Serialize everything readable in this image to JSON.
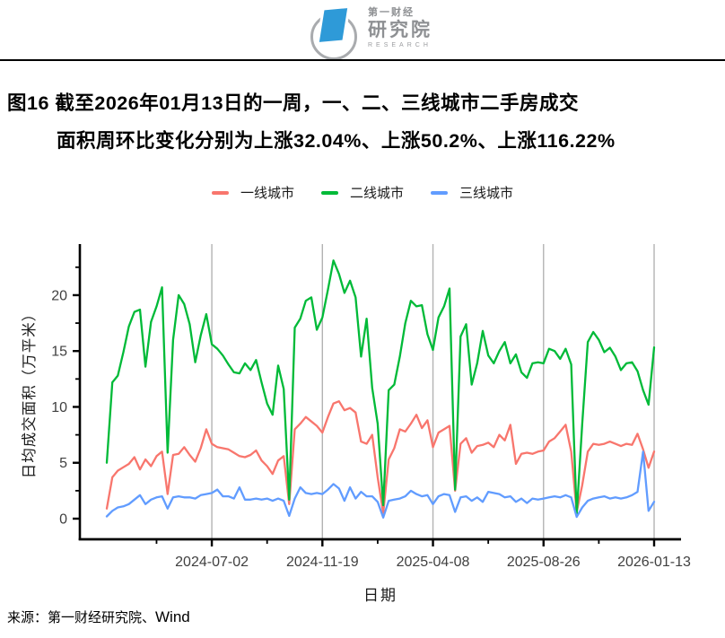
{
  "logo": {
    "brand_small": "第一财经",
    "brand_large": "研究院",
    "brand_en": "RESEARCH",
    "brand_color": "#2e9ad8"
  },
  "title": {
    "line1": "图16  截至2026年01月13日的一周，一、二、三线城市二手房成交",
    "line2": "面积周环比变化分别为上涨32.04%、上涨50.2%、上涨116.22%"
  },
  "footer": {
    "label": "来源：第一财经研究院、",
    "brand": "Wind"
  },
  "chart_data": {
    "type": "line",
    "title": "",
    "xlabel": "日期",
    "ylabel": "日均成交面积（万平米）",
    "x_start": "2024-02-20",
    "x_step_days": 7,
    "x_tick_labels": [
      "2024-07-02",
      "2024-11-19",
      "2025-04-08",
      "2025-08-26",
      "2026-01-13"
    ],
    "x_tick_indices": [
      19,
      39,
      59,
      79,
      99
    ],
    "y_ticks": [
      0,
      5,
      10,
      15,
      20
    ],
    "y_minor_ticks": [
      2.5,
      7.5,
      12.5,
      17.5,
      22.5
    ],
    "ylim": [
      0,
      24.5
    ],
    "grid": "vertical-only",
    "gridline_color": "#b3b3b3",
    "axis_color": "#000000",
    "tick_label_color": "#404040",
    "legend_position": "top",
    "series": [
      {
        "name": "一线城市",
        "color": "#f8766d",
        "values": [
          0.9,
          3.7,
          4.3,
          4.6,
          4.9,
          5.5,
          4.4,
          5.3,
          4.7,
          5.6,
          6.0,
          2.2,
          5.7,
          5.8,
          6.4,
          5.7,
          5.1,
          6.3,
          8.0,
          6.7,
          6.4,
          6.3,
          6.2,
          5.9,
          5.6,
          5.5,
          5.7,
          6.1,
          5.2,
          4.7,
          4.0,
          5.2,
          5.6,
          1.3,
          8.0,
          8.5,
          9.1,
          8.7,
          8.3,
          7.7,
          9.1,
          10.3,
          10.5,
          9.7,
          9.9,
          9.5,
          6.9,
          6.7,
          7.5,
          3.7,
          0.5,
          5.3,
          6.3,
          8.0,
          7.8,
          8.5,
          9.3,
          8.1,
          8.8,
          6.4,
          7.7,
          8.0,
          8.3,
          2.5,
          6.7,
          7.2,
          5.9,
          6.5,
          6.6,
          6.8,
          6.4,
          7.5,
          7.0,
          8.4,
          4.9,
          5.8,
          5.9,
          5.8,
          6.0,
          6.1,
          6.9,
          7.2,
          7.8,
          8.4,
          6.0,
          0.6,
          3.0,
          6.0,
          6.7,
          6.6,
          6.7,
          6.9,
          6.7,
          6.5,
          6.7,
          6.6,
          7.6,
          6.2,
          4.55,
          6.01
        ]
      },
      {
        "name": "二线城市",
        "color": "#00ba38",
        "values": [
          5.0,
          12.2,
          12.8,
          14.9,
          17.2,
          18.5,
          18.7,
          13.6,
          17.6,
          19.0,
          20.7,
          5.9,
          16.0,
          20.0,
          19.2,
          17.4,
          14.0,
          16.4,
          18.3,
          15.6,
          15.2,
          14.6,
          13.8,
          13.1,
          13.0,
          13.9,
          13.3,
          14.2,
          12.2,
          10.3,
          9.3,
          13.7,
          11.6,
          1.7,
          17.1,
          17.9,
          19.5,
          19.8,
          16.9,
          18.0,
          20.5,
          23.1,
          21.9,
          20.2,
          21.3,
          19.8,
          14.5,
          17.9,
          11.7,
          8.5,
          1.2,
          11.5,
          12.0,
          14.5,
          17.5,
          19.5,
          19.0,
          19.1,
          16.5,
          15.1,
          18.0,
          19.0,
          20.6,
          2.6,
          16.3,
          17.4,
          12.0,
          13.9,
          16.8,
          14.6,
          13.9,
          15.0,
          15.8,
          13.9,
          14.7,
          13.1,
          12.6,
          13.9,
          14.0,
          13.9,
          15.2,
          15.0,
          14.3,
          15.2,
          13.8,
          0.4,
          8.5,
          15.8,
          16.7,
          16.0,
          14.9,
          15.3,
          14.5,
          13.3,
          13.9,
          14.0,
          13.2,
          11.5,
          10.2,
          15.32
        ]
      },
      {
        "name": "三线城市",
        "color": "#619cff",
        "values": [
          0.2,
          0.7,
          1.0,
          1.1,
          1.3,
          1.7,
          2.1,
          1.3,
          1.7,
          1.9,
          2.0,
          0.9,
          1.9,
          2.0,
          1.9,
          1.9,
          1.8,
          2.1,
          2.2,
          2.3,
          2.6,
          2.0,
          2.0,
          1.8,
          2.8,
          1.7,
          1.7,
          1.8,
          1.7,
          1.8,
          1.6,
          1.8,
          1.6,
          0.25,
          1.8,
          2.8,
          2.3,
          2.2,
          2.3,
          2.2,
          2.6,
          3.1,
          2.7,
          1.6,
          2.8,
          1.8,
          2.4,
          2.0,
          2.0,
          1.5,
          0.1,
          1.6,
          1.7,
          1.8,
          2.0,
          2.5,
          2.2,
          2.0,
          2.1,
          1.3,
          2.0,
          2.2,
          2.1,
          0.6,
          1.9,
          2.0,
          1.6,
          1.9,
          1.5,
          2.4,
          2.3,
          2.2,
          1.9,
          2.0,
          1.5,
          1.8,
          1.4,
          1.8,
          1.7,
          1.8,
          1.9,
          2.0,
          1.9,
          2.1,
          1.9,
          0.15,
          1.0,
          1.6,
          1.8,
          1.9,
          2.0,
          1.8,
          1.9,
          1.8,
          1.9,
          2.1,
          2.4,
          6.0,
          0.7,
          1.51
        ]
      }
    ],
    "last_week_change": {
      "一线城市": "+32.04%",
      "二线城市": "+50.2%",
      "三线城市": "+116.22%"
    }
  }
}
